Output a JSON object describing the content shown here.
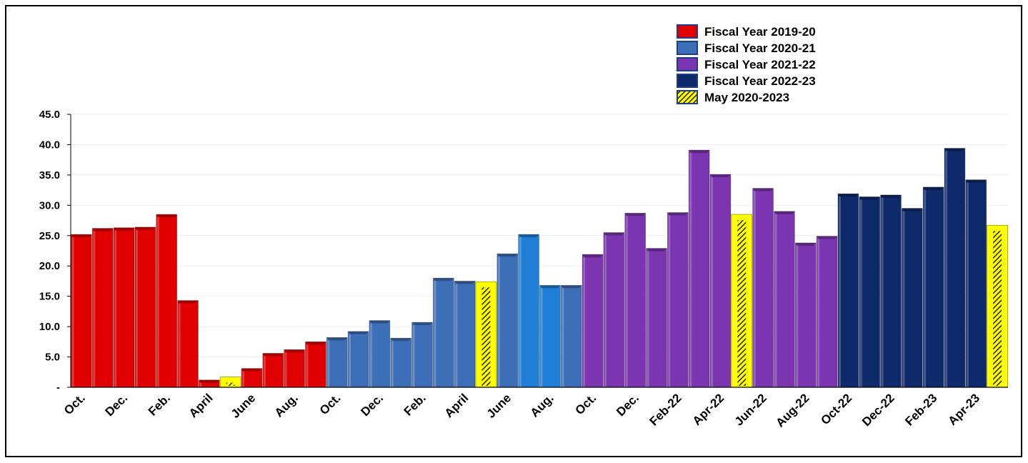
{
  "chart_data": {
    "type": "bar",
    "title": "",
    "xlabel": "",
    "ylabel": "",
    "ylim": [
      0,
      45
    ],
    "yticks": [
      "-",
      "5.0",
      "10.0",
      "15.0",
      "20.0",
      "25.0",
      "30.0",
      "35.0",
      "40.0",
      "45.0"
    ],
    "grid": false,
    "legend_position": "top-right",
    "x_tick_labels": [
      "Oct.",
      "Dec.",
      "Feb.",
      "April",
      "June",
      "Aug.",
      "Oct.",
      "Dec.",
      "Feb.",
      "April",
      "June",
      "Aug.",
      "Oct.",
      "Dec.",
      "Feb-22",
      "Apr-22",
      "Jun-22",
      "Aug-22",
      "Oct-22",
      "Dec-22",
      "Feb-23",
      "Apr-23"
    ],
    "legend": [
      {
        "name": "Fiscal Year 2019-20",
        "color": "#e00000",
        "pattern": "solid"
      },
      {
        "name": "Fiscal Year 2020-21",
        "color": "#3d6fb8",
        "pattern": "solid"
      },
      {
        "name": "Fiscal Year 2021-22",
        "color": "#7c35b0",
        "pattern": "solid"
      },
      {
        "name": "Fiscal Year 2022-23",
        "color": "#0f2a6b",
        "pattern": "solid"
      },
      {
        "name": "May 2020-2023",
        "color": "#ffff00",
        "pattern": "hatched"
      }
    ],
    "series": [
      {
        "name": "Fiscal Year 2019-20",
        "values": [
          25.2,
          26.2,
          26.3,
          26.4,
          28.5,
          14.3,
          1.2,
          null,
          3.1,
          5.6,
          6.2,
          7.5,
          null,
          null,
          null,
          null,
          null,
          null,
          null,
          null,
          null,
          null,
          null,
          null,
          null,
          null,
          null,
          null,
          null,
          null,
          null,
          null,
          null,
          null,
          null,
          null,
          null,
          null,
          null,
          null,
          null,
          null,
          null,
          null
        ]
      },
      {
        "name": "Fiscal Year 2020-21",
        "values": [
          null,
          null,
          null,
          null,
          null,
          null,
          null,
          null,
          null,
          null,
          null,
          null,
          8.2,
          9.2,
          11.0,
          8.1,
          10.7,
          18.0,
          17.5,
          null,
          22.0,
          25.2,
          16.8,
          16.8,
          null,
          null,
          null,
          null,
          null,
          null,
          null,
          null,
          null,
          null,
          null,
          null,
          null,
          null,
          null,
          null,
          null,
          null,
          null,
          null
        ]
      },
      {
        "name": "Fiscal Year 2021-22",
        "values": [
          null,
          null,
          null,
          null,
          null,
          null,
          null,
          null,
          null,
          null,
          null,
          null,
          null,
          null,
          null,
          null,
          null,
          null,
          null,
          null,
          null,
          null,
          null,
          null,
          21.9,
          25.5,
          28.7,
          22.9,
          28.8,
          39.1,
          35.1,
          null,
          32.8,
          29.0,
          23.8,
          24.9,
          null,
          null,
          null,
          null,
          null,
          null,
          null,
          null
        ]
      },
      {
        "name": "Fiscal Year 2022-23",
        "values": [
          null,
          null,
          null,
          null,
          null,
          null,
          null,
          null,
          null,
          null,
          null,
          null,
          null,
          null,
          null,
          null,
          null,
          null,
          null,
          null,
          null,
          null,
          null,
          null,
          null,
          null,
          null,
          null,
          null,
          null,
          null,
          null,
          null,
          null,
          null,
          null,
          31.9,
          31.4,
          31.7,
          29.5,
          33.0,
          39.4,
          34.2,
          null
        ]
      },
      {
        "name": "May 2020-2023",
        "values": [
          null,
          null,
          null,
          null,
          null,
          null,
          null,
          1.7,
          null,
          null,
          null,
          null,
          null,
          null,
          null,
          null,
          null,
          null,
          null,
          17.4,
          null,
          null,
          null,
          null,
          null,
          null,
          null,
          null,
          null,
          null,
          null,
          28.5,
          null,
          null,
          null,
          null,
          null,
          null,
          null,
          null,
          null,
          null,
          null,
          26.7
        ]
      }
    ]
  }
}
